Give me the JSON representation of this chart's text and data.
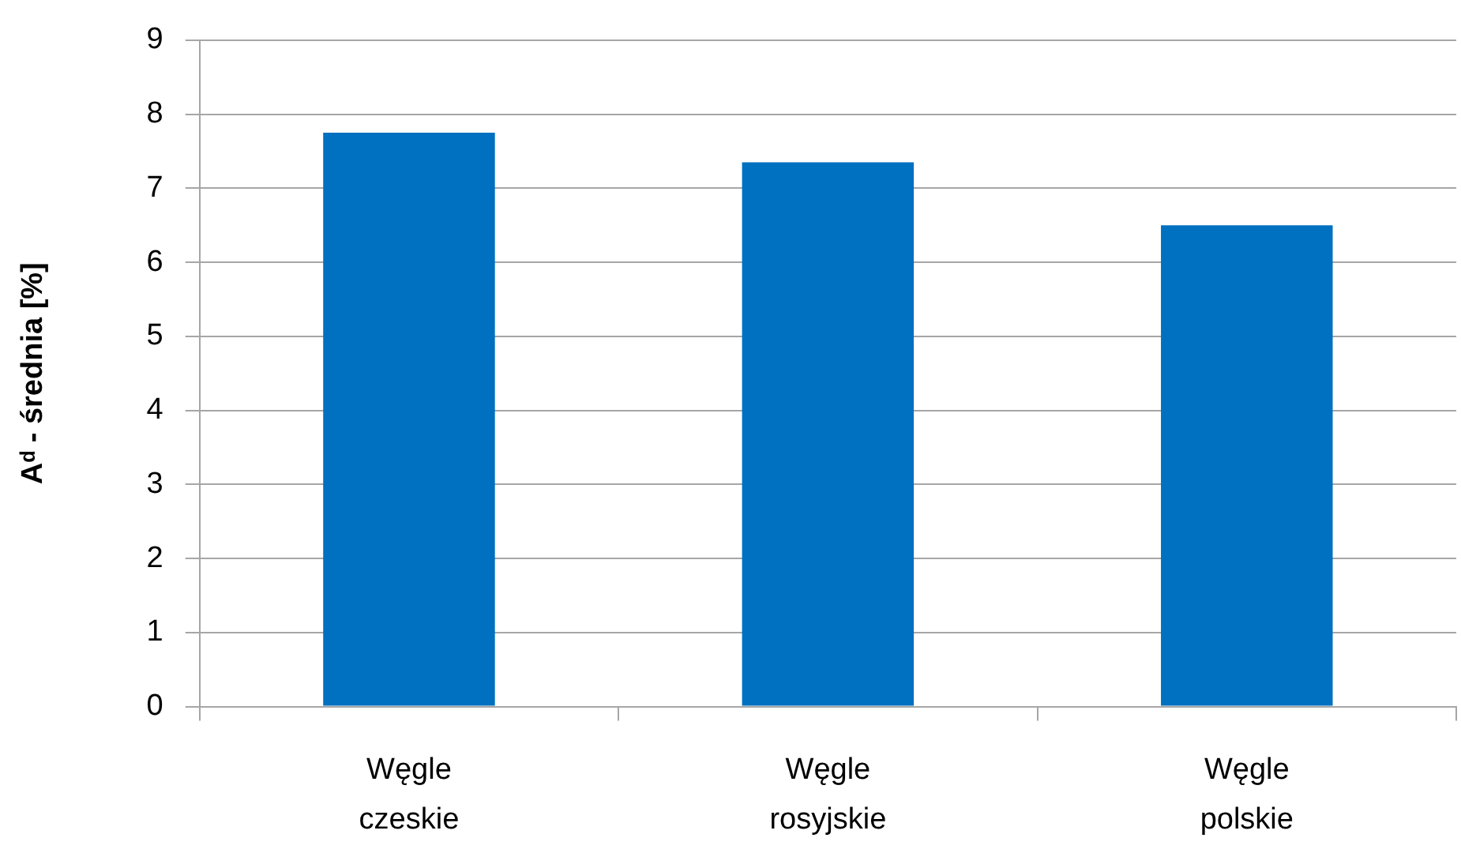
{
  "chart_data": {
    "type": "bar",
    "ylabel": "Aᵈ - średnia [%]",
    "categories": [
      "Węgle czeskie",
      "Węgle rosyjskie",
      "Węgle polskie"
    ],
    "values": [
      7.75,
      7.35,
      6.5
    ],
    "color": "#0070c0",
    "ylim": [
      0,
      9
    ],
    "yticks": [
      0,
      1,
      2,
      3,
      4,
      5,
      6,
      7,
      8,
      9
    ],
    "grid": "y",
    "legend": false
  }
}
